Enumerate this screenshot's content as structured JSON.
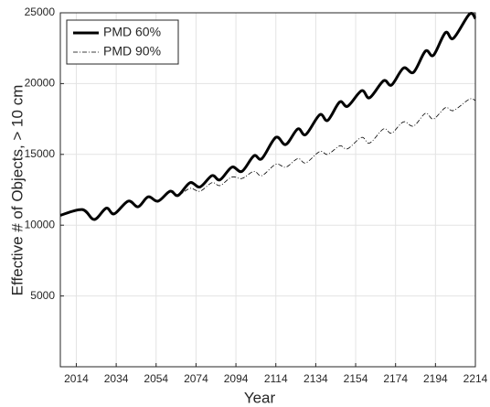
{
  "chart_data": {
    "type": "line",
    "xlabel": "Year",
    "ylabel": "Effective # of Objects, > 10 cm",
    "x": [
      2006,
      2017,
      2023,
      2029,
      2033,
      2040,
      2045,
      2050,
      2055,
      2061,
      2065,
      2071,
      2076,
      2082,
      2086,
      2092,
      2097,
      2103,
      2107,
      2114,
      2119,
      2125,
      2129,
      2136,
      2140,
      2146,
      2150,
      2157,
      2161,
      2168,
      2172,
      2178,
      2183,
      2189,
      2193,
      2199,
      2203,
      2211,
      2214
    ],
    "series": [
      {
        "name": "PMD 60%",
        "color": "#000000",
        "line_style": "solid",
        "line_width": 3,
        "values": [
          10700,
          11100,
          10400,
          11200,
          10800,
          11700,
          11300,
          12000,
          11700,
          12400,
          12100,
          13000,
          12700,
          13500,
          13200,
          14100,
          13800,
          14900,
          14700,
          16200,
          15700,
          16800,
          16400,
          17800,
          17400,
          18700,
          18400,
          19500,
          19000,
          20200,
          19900,
          21100,
          20800,
          22300,
          22000,
          23600,
          23200,
          24900,
          24600
        ]
      },
      {
        "name": "PMD 90%",
        "color": "#000000",
        "line_style": "dashdot",
        "line_width": 0.8,
        "values": [
          10700,
          11100,
          10400,
          11200,
          10800,
          11700,
          11300,
          12000,
          11700,
          12400,
          12100,
          12600,
          12400,
          13000,
          12800,
          13400,
          13300,
          13800,
          13500,
          14300,
          14100,
          14700,
          14400,
          15200,
          15000,
          15600,
          15400,
          16200,
          15800,
          16800,
          16500,
          17300,
          17000,
          17900,
          17500,
          18300,
          18100,
          18900,
          18800
        ]
      }
    ],
    "xlim": [
      2006,
      2214
    ],
    "xticks": [
      2014,
      2034,
      2054,
      2074,
      2094,
      2114,
      2134,
      2154,
      2174,
      2194,
      2214
    ],
    "ylim": [
      0,
      25000
    ],
    "yticks": [
      5000,
      10000,
      15000,
      20000,
      25000
    ],
    "grid": true,
    "legend": "upper left"
  }
}
